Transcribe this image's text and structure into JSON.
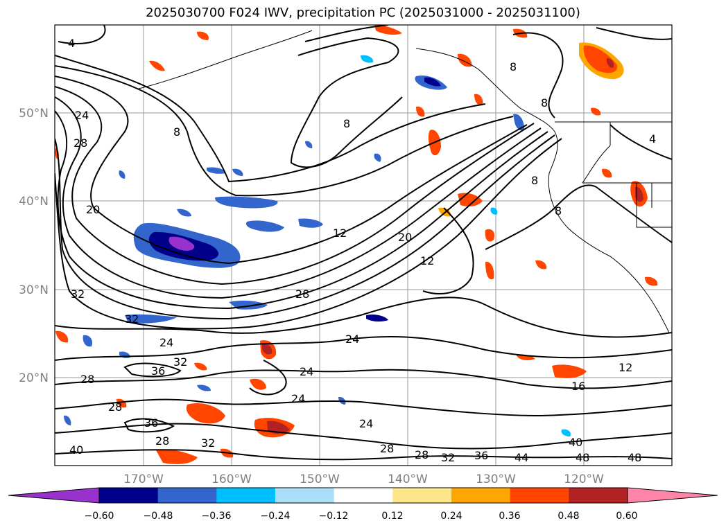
{
  "title": "2025030700 F024 IWV, precipitation PC (2025031000 - 2025031100)",
  "latitude_labels": [
    "50°N",
    "40°N",
    "30°N",
    "20°N"
  ],
  "longitude_labels": [
    "170°W",
    "160°W",
    "150°W",
    "140°W",
    "130°W",
    "120°W"
  ],
  "colorbar": {
    "tick_labels": [
      "−0.60",
      "−0.48",
      "−0.36",
      "−0.24",
      "−0.12",
      "0.12",
      "0.24",
      "0.36",
      "0.48",
      "0.60"
    ],
    "colors": [
      "#9932cc",
      "#00008b",
      "#3366cc",
      "#00bfff",
      "#aadff7",
      "#ffffff",
      "#fde68a",
      "#ffa500",
      "#ff4500",
      "#b22222",
      "#ff85a8"
    ]
  },
  "contour_labels": [
    "4",
    "4",
    "8",
    "8",
    "8",
    "8",
    "8",
    "8",
    "12",
    "12",
    "12",
    "16",
    "20",
    "20",
    "24",
    "24",
    "24",
    "24",
    "24",
    "24",
    "28",
    "28",
    "28",
    "28",
    "28",
    "28",
    "28",
    "32",
    "32",
    "32",
    "32",
    "32",
    "36",
    "36",
    "36",
    "40",
    "40",
    "44",
    "48",
    "48"
  ]
}
